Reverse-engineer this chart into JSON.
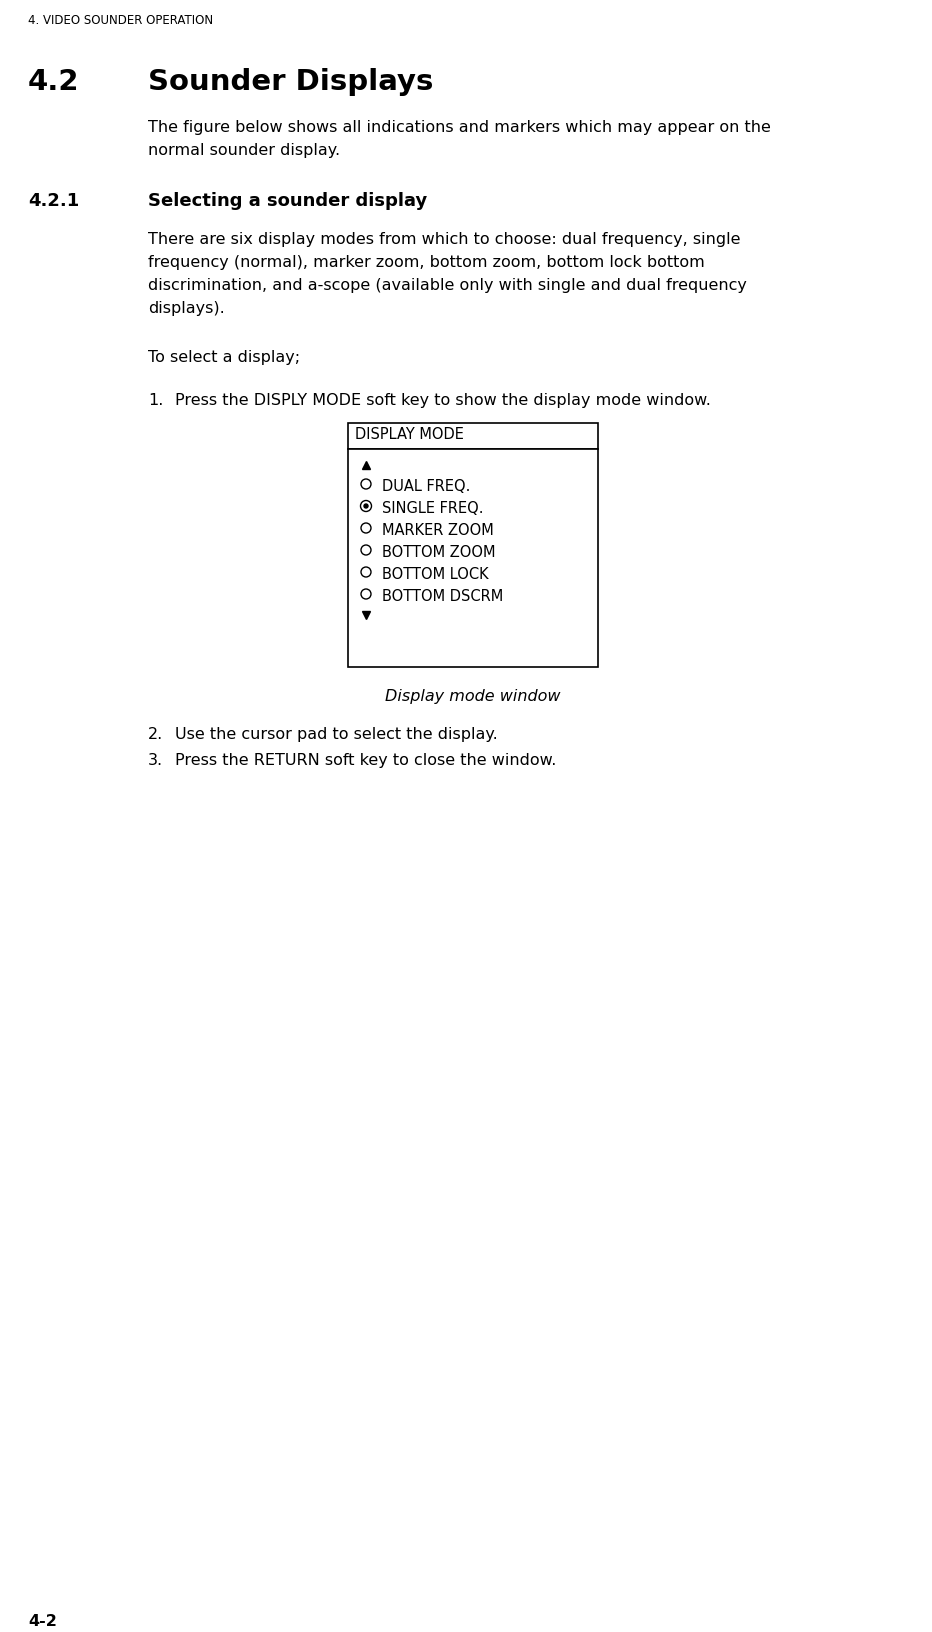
{
  "page_header": "4. VIDEO SOUNDER OPERATION",
  "section_num": "4.2",
  "section_title": "Sounder Displays",
  "section_body_1": "The figure below shows all indications and markers which may appear on the",
  "section_body_2": "normal sounder display.",
  "subsection_num": "4.2.1",
  "subsection_title": "Selecting a sounder display",
  "sub_body_lines": [
    "There are six display modes from which to choose: dual frequency, single",
    "frequency (normal), marker zoom, bottom zoom, bottom lock bottom",
    "discrimination, and a-scope (available only with single and dual frequency",
    "displays)."
  ],
  "to_select_text": "To select a display;",
  "step1_label": "1.",
  "step1_text": "Press the DISPLY MODE soft key to show the display mode window.",
  "step2_label": "2.",
  "step2_text": "Use the cursor pad to select the display.",
  "step3_label": "3.",
  "step3_text": "Press the RETURN soft key to close the window.",
  "box_title": "DISPLAY MODE",
  "box_items": [
    {
      "symbol": "triangle_up",
      "text": ""
    },
    {
      "symbol": "circle_empty",
      "text": "DUAL FREQ."
    },
    {
      "symbol": "circle_dot",
      "text": "SINGLE FREQ."
    },
    {
      "symbol": "circle_empty",
      "text": "MARKER ZOOM"
    },
    {
      "symbol": "circle_empty",
      "text": "BOTTOM ZOOM"
    },
    {
      "symbol": "circle_empty",
      "text": "BOTTOM LOCK"
    },
    {
      "symbol": "circle_empty",
      "text": "BOTTOM DSCRM"
    },
    {
      "symbol": "triangle_down",
      "text": ""
    }
  ],
  "box_caption": "Display mode window",
  "page_number": "4-2",
  "bg_color": "#ffffff",
  "text_color": "#000000"
}
